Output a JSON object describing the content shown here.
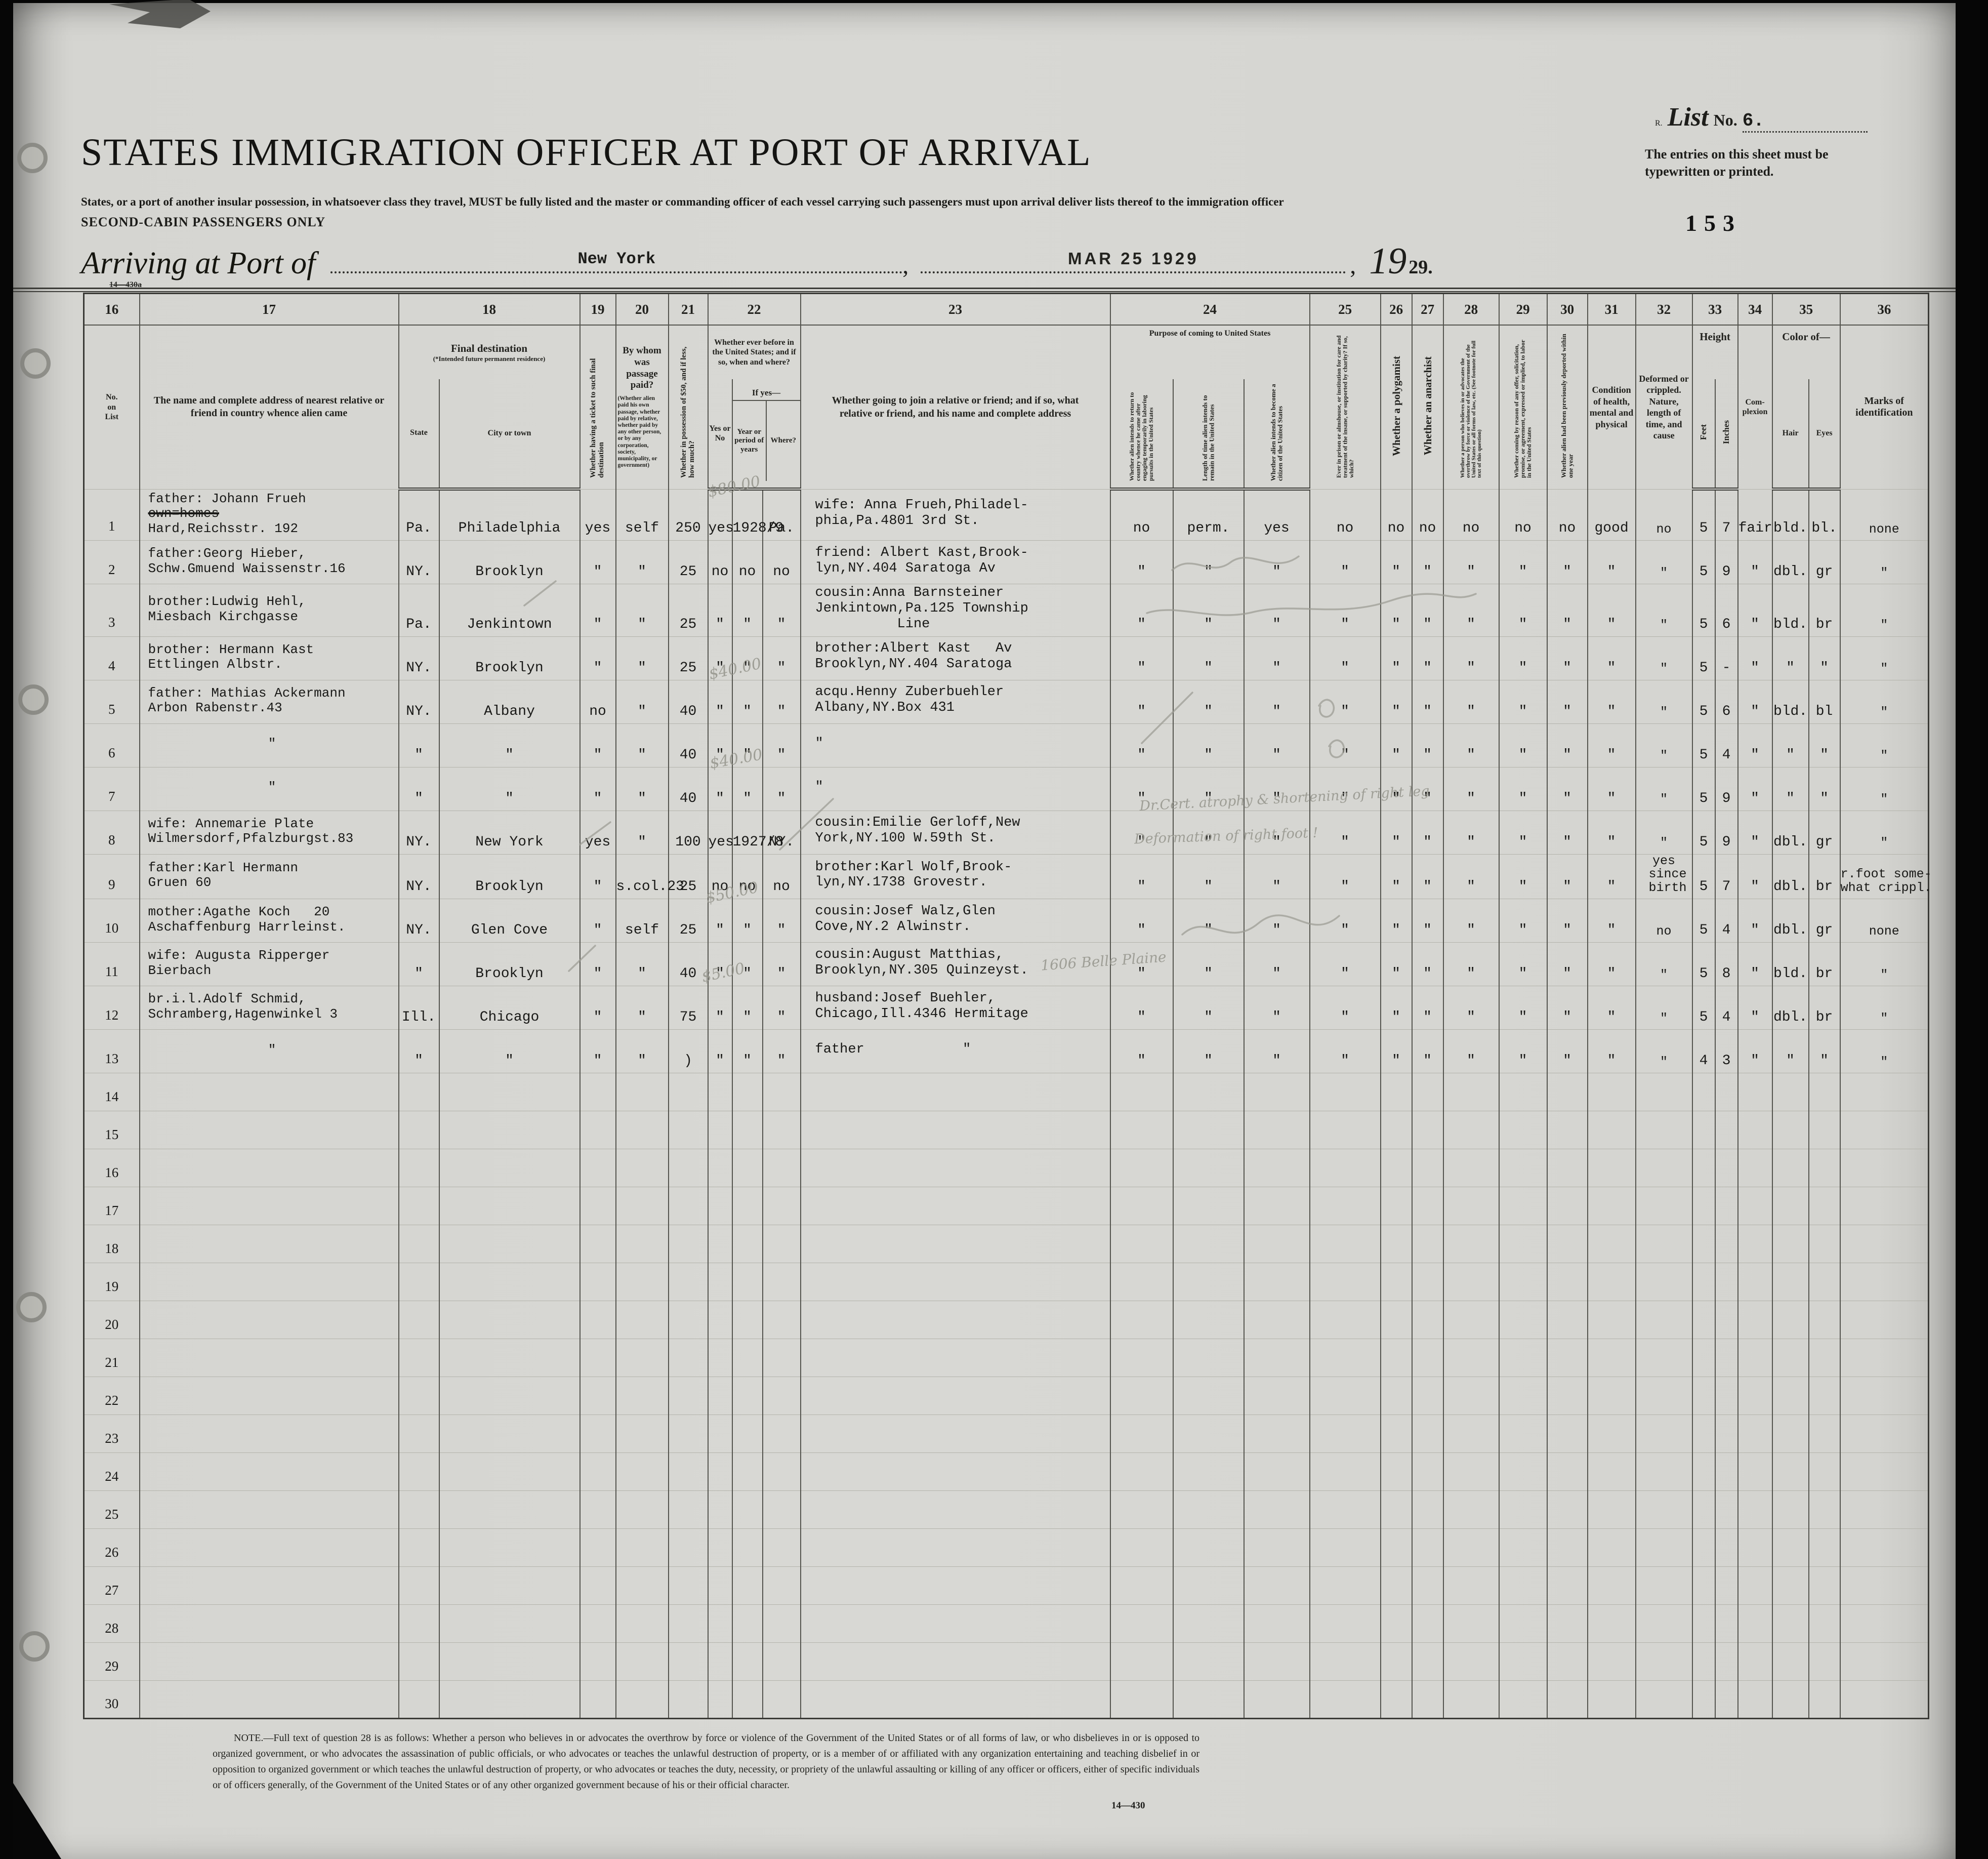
{
  "page": {
    "list_prefix": "R.",
    "list_word": "List",
    "list_no_label": "No.",
    "list_no_value": "6.",
    "typed_note": "The entries on this sheet must be typewritten or printed.",
    "stamp_number": "153",
    "title": "STATES IMMIGRATION OFFICER AT PORT OF ARRIVAL",
    "intro": "States, or a port of another insular possession, in whatsoever class they travel, MUST be fully listed and the master or commanding officer of each vessel carrying such passengers must upon arrival deliver lists thereof to the immigration officer",
    "second_cabin": "SECOND-CABIN PASSENGERS ONLY",
    "arriving_label": "Arriving at Port of",
    "port_value": "New York",
    "date_stamp": "MAR 25 1929",
    "year_printed": "19",
    "year_written": "29.",
    "comma": ",",
    "form_no_top": "14—430a",
    "footer_note": "NOTE.—Full text of question 28 is as follows: Whether a person who believes in or advocates the overthrow by force or violence of the Government of the United States or of all forms of law, or who disbelieves in or is opposed to organized government, or who advocates the assassination of public officials, or who advocates or teaches the unlawful destruction of property, or is a member of or affiliated with any organization entertaining and teaching disbelief in or opposition to organized government or which teaches the unlawful destruction of property, or who advocates or teaches the duty, necessity, or propriety of the unlawful assaulting or killing of any officer or officers, either of specific individuals or of officers generally, of the Government of the United States or of any other organized government because of his or their official character.",
    "form_no_bottom": "14—430"
  },
  "headers": {
    "n16": "16",
    "n17": "17",
    "n18": "18",
    "n19": "19",
    "n20": "20",
    "n21": "21",
    "n22": "22",
    "n23": "23",
    "n24": "24",
    "n25": "25",
    "n26": "26",
    "n27": "27",
    "n28": "28",
    "n29": "29",
    "n30": "30",
    "n31": "31",
    "n32": "32",
    "n33": "33",
    "n34": "34",
    "n35": "35",
    "n36": "36",
    "c16": "No.\non\nList",
    "c17": "The name and complete address of nearest relative or friend in country whence alien came",
    "c18_title": "Final destination",
    "c18_sub": "(*Intended future permanent residence)",
    "c18_state": "State",
    "c18_city": "City or town",
    "c19": "Whether having a ticket to such final destination",
    "c20_title": "By whom was passage paid?",
    "c20_sub": "(Whether alien paid his own passage, whether paid by relative, whether paid by any other person, or by any corporation, society, municipality, or government)",
    "c21": "Whether in possession of $50, and if less, how much?",
    "c22_title": "Whether ever before in the United States; and if so, when and where?",
    "c22_yesno": "Yes or No",
    "c22_ifyes": "If yes—",
    "c22_year": "Year or period of years",
    "c22_where": "Where?",
    "c23": "Whether going to join a relative or friend; and if so, what relative or friend, and his name and complete address",
    "c24_title": "Purpose of coming to United States",
    "c24_return": "Whether alien intends to return to country whence he came after engaging temporarily in laboring pursuits in the United States",
    "c24_length": "Length of time alien intends to remain in the United States",
    "c24_citizen": "Whether alien intends to become a citizen of the United States",
    "c25": "Ever in prison or almshouse, or institution for care and treatment of the insane, or supported by charity? If so, which?",
    "c26": "Whether a polygamist",
    "c27": "Whether an anarchist",
    "c28": "Whether a person who believes in or advocates the overthrow by force or violence of the Government of the United States or all forms of law, etc. (See footnote for full text of this question)",
    "c29": "Whether coming by reason of any offer, solicitation, promise, or agreement, expressed or implied, to labor in the United States",
    "c30": "Whether alien had been previously deported within one year",
    "c31": "Condition of health, mental and physical",
    "c32": "Deformed or crippled. Nature, length of time, and cause",
    "c33_title": "Height",
    "c33_feet": "Feet",
    "c33_inches": "Inches",
    "c34": "Com-\nplexion",
    "c35_title": "Color of—",
    "c35_hair": "Hair",
    "c35_eyes": "Eyes",
    "c36": "Marks of identification"
  },
  "rows": [
    {
      "n": "1",
      "name": [
        "father: Johann Frueh",
        {
          "text": "own=homes",
          "strike": true
        },
        "Hard,Reichsstr. 192"
      ],
      "state": "Pa.",
      "city": "Philadelphia",
      "ticket": "yes",
      "paid": "self",
      "money": "250",
      "prev_yn": "yes",
      "prev_year": "1928/9",
      "prev_where": "Pa.",
      "join": "wife: Anna Frueh,Philadel-\nphia,Pa.4801 3rd St.",
      "intend_return": "no",
      "stay_length": "perm.",
      "citizen": "yes",
      "prison": "no",
      "polygamist": "no",
      "anarchist": "no",
      "overthrow": "no",
      "labor_offer": "no",
      "deported": "no",
      "health": "good",
      "deformed": "no",
      "feet": "5",
      "inches": "7",
      "complexion": "fair",
      "hair": "bld.",
      "eyes": "bl.",
      "marks": "none"
    },
    {
      "n": "2",
      "name": [
        "father:Georg Hieber,",
        "Schw.Gmuend Waissenstr.16"
      ],
      "state": "NY.",
      "city": "Brooklyn",
      "ticket": "\"",
      "paid": "\"",
      "money": "25",
      "prev_yn": "no",
      "prev_year": "no",
      "prev_where": "no",
      "join": "friend: Albert Kast,Brook-\nlyn,NY.404 Saratoga Av",
      "intend_return": "\"",
      "stay_length": "\"",
      "citizen": "\"",
      "prison": "\"",
      "polygamist": "\"",
      "anarchist": "\"",
      "overthrow": "\"",
      "labor_offer": "\"",
      "deported": "\"",
      "health": "\"",
      "deformed": "\"",
      "feet": "5",
      "inches": "9",
      "complexion": "\"",
      "hair": "dbl.",
      "eyes": "gr",
      "marks": "\""
    },
    {
      "n": "3",
      "name": [
        "brother:Ludwig Hehl,",
        "Miesbach Kirchgasse"
      ],
      "state": "Pa.",
      "city": "Jenkintown",
      "ticket": "\"",
      "paid": "\"",
      "money": "25",
      "prev_yn": "\"",
      "prev_year": "\"",
      "prev_where": "\"",
      "join": "cousin:Anna Barnsteiner\nJenkintown,Pa.125 Township\n          Line",
      "intend_return": "\"",
      "stay_length": "\"",
      "citizen": "\"",
      "prison": "\"",
      "polygamist": "\"",
      "anarchist": "\"",
      "overthrow": "\"",
      "labor_offer": "\"",
      "deported": "\"",
      "health": "\"",
      "deformed": "\"",
      "feet": "5",
      "inches": "6",
      "complexion": "\"",
      "hair": "bld.",
      "eyes": "br",
      "marks": "\""
    },
    {
      "n": "4",
      "name": [
        "brother: Hermann Kast",
        "Ettlingen Albstr."
      ],
      "state": "NY.",
      "city": "Brooklyn",
      "ticket": "\"",
      "paid": "\"",
      "money": "25",
      "prev_yn": "\"",
      "prev_year": "\"",
      "prev_where": "\"",
      "join": "brother:Albert Kast   Av\nBrooklyn,NY.404 Saratoga",
      "intend_return": "\"",
      "stay_length": "\"",
      "citizen": "\"",
      "prison": "\"",
      "polygamist": "\"",
      "anarchist": "\"",
      "overthrow": "\"",
      "labor_offer": "\"",
      "deported": "\"",
      "health": "\"",
      "deformed": "\"",
      "feet": "5",
      "inches": "-",
      "complexion": "\"",
      "hair": "\"",
      "eyes": "\"",
      "marks": "\""
    },
    {
      "n": "5",
      "name": [
        "father: Mathias Ackermann",
        "Arbon Rabenstr.43"
      ],
      "state": "NY.",
      "city": "Albany",
      "ticket": "no",
      "paid": "\"",
      "money": "40",
      "prev_yn": "\"",
      "prev_year": "\"",
      "prev_where": "\"",
      "join": "acqu.Henny Zuberbuehler\nAlbany,NY.Box 431",
      "intend_return": "\"",
      "stay_length": "\"",
      "citizen": "\"",
      "prison": "\"",
      "polygamist": "\"",
      "anarchist": "\"",
      "overthrow": "\"",
      "labor_offer": "\"",
      "deported": "\"",
      "health": "\"",
      "deformed": "\"",
      "feet": "5",
      "inches": "6",
      "complexion": "\"",
      "hair": "bld.",
      "eyes": "bl",
      "marks": "\""
    },
    {
      "n": "6",
      "name": [
        "\""
      ],
      "state": "\"",
      "city": "\"",
      "ticket": "\"",
      "paid": "\"",
      "money": "40",
      "prev_yn": "\"",
      "prev_year": "\"",
      "prev_where": "\"",
      "join": "\"",
      "intend_return": "\"",
      "stay_length": "\"",
      "citizen": "\"",
      "prison": "\"",
      "polygamist": "\"",
      "anarchist": "\"",
      "overthrow": "\"",
      "labor_offer": "\"",
      "deported": "\"",
      "health": "\"",
      "deformed": "\"",
      "feet": "5",
      "inches": "4",
      "complexion": "\"",
      "hair": "\"",
      "eyes": "\"",
      "marks": "\""
    },
    {
      "n": "7",
      "name": [
        "\""
      ],
      "state": "\"",
      "city": "\"",
      "ticket": "\"",
      "paid": "\"",
      "money": "40",
      "prev_yn": "\"",
      "prev_year": "\"",
      "prev_where": "\"",
      "join": "\"",
      "intend_return": "\"",
      "stay_length": "\"",
      "citizen": "\"",
      "prison": "\"",
      "polygamist": "\"",
      "anarchist": "\"",
      "overthrow": "\"",
      "labor_offer": "\"",
      "deported": "\"",
      "health": "\"",
      "deformed": "\"",
      "feet": "5",
      "inches": "9",
      "complexion": "\"",
      "hair": "\"",
      "eyes": "\"",
      "marks": "\""
    },
    {
      "n": "8",
      "name": [
        "wife: Annemarie Plate",
        "Wilmersdorf,Pfalzburgst.83"
      ],
      "state": "NY.",
      "city": "New York",
      "ticket": "yes",
      "paid": "\"",
      "money": "100",
      "prev_yn": "yes",
      "prev_year": "1927/8",
      "prev_where": "NY.",
      "join": "cousin:Emilie Gerloff,New\nYork,NY.100 W.59th St.",
      "intend_return": "\"",
      "stay_length": "\"",
      "citizen": "\"",
      "prison": "\"",
      "polygamist": "\"",
      "anarchist": "\"",
      "overthrow": "\"",
      "labor_offer": "\"",
      "deported": "\"",
      "health": "\"",
      "deformed": "\"",
      "feet": "5",
      "inches": "9",
      "complexion": "\"",
      "hair": "dbl.",
      "eyes": "gr",
      "marks": "\""
    },
    {
      "n": "9",
      "name": [
        "father:Karl Hermann",
        "Gruen 60"
      ],
      "state": "NY.",
      "city": "Brooklyn",
      "ticket": "\"",
      "paid": "s.col.23",
      "money": "25",
      "prev_yn": "no",
      "prev_year": "no",
      "prev_where": "no",
      "join": "brother:Karl Wolf,Brook-\nlyn,NY.1738 Grovestr.",
      "intend_return": "\"",
      "stay_length": "\"",
      "citizen": "\"",
      "prison": "\"",
      "polygamist": "\"",
      "anarchist": "\"",
      "overthrow": "\"",
      "labor_offer": "\"",
      "deported": "\"",
      "health": "\"",
      "deformed": "yes\n since\n birth",
      "feet": "5",
      "inches": "7",
      "complexion": "\"",
      "hair": "dbl.",
      "eyes": "br",
      "marks": "r.foot some-\nwhat crippl."
    },
    {
      "n": "10",
      "name": [
        "mother:Agathe Koch   20",
        "Aschaffenburg Harrleinst."
      ],
      "state": "NY.",
      "city": "Glen Cove",
      "ticket": "\"",
      "paid": "self",
      "money": "25",
      "prev_yn": "\"",
      "prev_year": "\"",
      "prev_where": "\"",
      "join": "cousin:Josef Walz,Glen\nCove,NY.2 Alwinstr.",
      "intend_return": "\"",
      "stay_length": "\"",
      "citizen": "\"",
      "prison": "\"",
      "polygamist": "\"",
      "anarchist": "\"",
      "overthrow": "\"",
      "labor_offer": "\"",
      "deported": "\"",
      "health": "\"",
      "deformed": "no",
      "feet": "5",
      "inches": "4",
      "complexion": "\"",
      "hair": "dbl.",
      "eyes": "gr",
      "marks": "none"
    },
    {
      "n": "11",
      "name": [
        "wife: Augusta Ripperger",
        "Bierbach"
      ],
      "state": "\"",
      "city": "Brooklyn",
      "ticket": "\"",
      "paid": "\"",
      "money": "40",
      "prev_yn": "\"",
      "prev_year": "\"",
      "prev_where": "\"",
      "join": "cousin:August Matthias,\nBrooklyn,NY.305 Quinzeyst.",
      "intend_return": "\"",
      "stay_length": "\"",
      "citizen": "\"",
      "prison": "\"",
      "polygamist": "\"",
      "anarchist": "\"",
      "overthrow": "\"",
      "labor_offer": "\"",
      "deported": "\"",
      "health": "\"",
      "deformed": "\"",
      "feet": "5",
      "inches": "8",
      "complexion": "\"",
      "hair": "bld.",
      "eyes": "br",
      "marks": "\""
    },
    {
      "n": "12",
      "name": [
        "br.i.l.Adolf Schmid,",
        "Schramberg,Hagenwinkel 3"
      ],
      "state": "Ill.",
      "city": "Chicago",
      "ticket": "\"",
      "paid": "\"",
      "money": "75",
      "prev_yn": "\"",
      "prev_year": "\"",
      "prev_where": "\"",
      "join": "husband:Josef Buehler,\nChicago,Ill.4346 Hermitage",
      "intend_return": "\"",
      "stay_length": "\"",
      "citizen": "\"",
      "prison": "\"",
      "polygamist": "\"",
      "anarchist": "\"",
      "overthrow": "\"",
      "labor_offer": "\"",
      "deported": "\"",
      "health": "\"",
      "deformed": "\"",
      "feet": "5",
      "inches": "4",
      "complexion": "\"",
      "hair": "dbl.",
      "eyes": "br",
      "marks": "\""
    },
    {
      "n": "13",
      "name": [
        "\""
      ],
      "state": "\"",
      "city": "\"",
      "ticket": "\"",
      "paid": "\"",
      "money": ")",
      "prev_yn": "\"",
      "prev_year": "\"",
      "prev_where": "\"",
      "join": "father            \"",
      "intend_return": "\"",
      "stay_length": "\"",
      "citizen": "\"",
      "prison": "\"",
      "polygamist": "\"",
      "anarchist": "\"",
      "overthrow": "\"",
      "labor_offer": "\"",
      "deported": "\"",
      "health": "\"",
      "deformed": "\"",
      "feet": "4",
      "inches": "3",
      "complexion": "\"",
      "hair": "\"",
      "eyes": "\"",
      "marks": "\""
    }
  ],
  "empty_row_numbers": [
    "14",
    "15",
    "16",
    "17",
    "18",
    "19",
    "20",
    "21",
    "22",
    "23",
    "24",
    "25",
    "26",
    "27",
    "28",
    "29",
    "30"
  ],
  "annotations": [
    "$80.00",
    "$40.00",
    "$40.00",
    "$50.00",
    "$5.00",
    "Dr.Cert. atrophy & shortening of right leg",
    "Deformation of right foot !",
    "1606 Belle Plaine"
  ]
}
